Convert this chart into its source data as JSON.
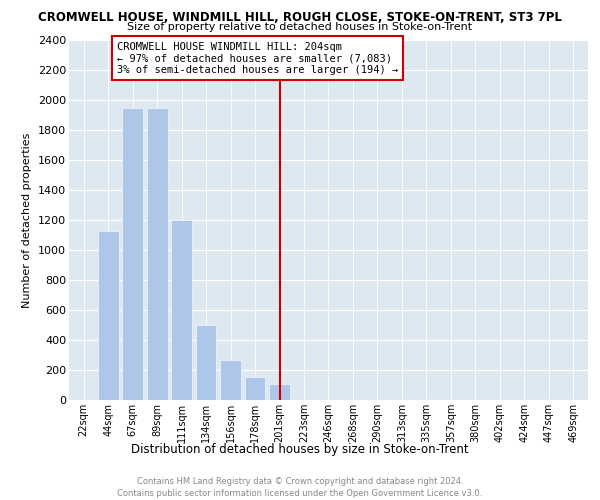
{
  "title": "CROMWELL HOUSE, WINDMILL HILL, ROUGH CLOSE, STOKE-ON-TRENT, ST3 7PL",
  "subtitle": "Size of property relative to detached houses in Stoke-on-Trent",
  "xlabel": "Distribution of detached houses by size in Stoke-on-Trent",
  "ylabel": "Number of detached properties",
  "categories": [
    "22sqm",
    "44sqm",
    "67sqm",
    "89sqm",
    "111sqm",
    "134sqm",
    "156sqm",
    "178sqm",
    "201sqm",
    "223sqm",
    "246sqm",
    "268sqm",
    "290sqm",
    "313sqm",
    "335sqm",
    "357sqm",
    "380sqm",
    "402sqm",
    "424sqm",
    "447sqm",
    "469sqm"
  ],
  "values": [
    0,
    1130,
    1950,
    1950,
    1200,
    500,
    265,
    155,
    110,
    0,
    0,
    0,
    0,
    0,
    0,
    0,
    0,
    0,
    0,
    0,
    0
  ],
  "bar_color": "#aec6e8",
  "property_line_index": 8,
  "property_line_color": "#cc0000",
  "annotation_text_line1": "CROMWELL HOUSE WINDMILL HILL: 204sqm",
  "annotation_text_line2": "← 97% of detached houses are smaller (7,083)",
  "annotation_text_line3": "3% of semi-detached houses are larger (194) →",
  "ylim_max": 2400,
  "yticks": [
    0,
    200,
    400,
    600,
    800,
    1000,
    1200,
    1400,
    1600,
    1800,
    2000,
    2200,
    2400
  ],
  "footer_line1": "Contains HM Land Registry data © Crown copyright and database right 2024.",
  "footer_line2": "Contains public sector information licensed under the Open Government Licence v3.0.",
  "plot_bg_color": "#dde8f0"
}
